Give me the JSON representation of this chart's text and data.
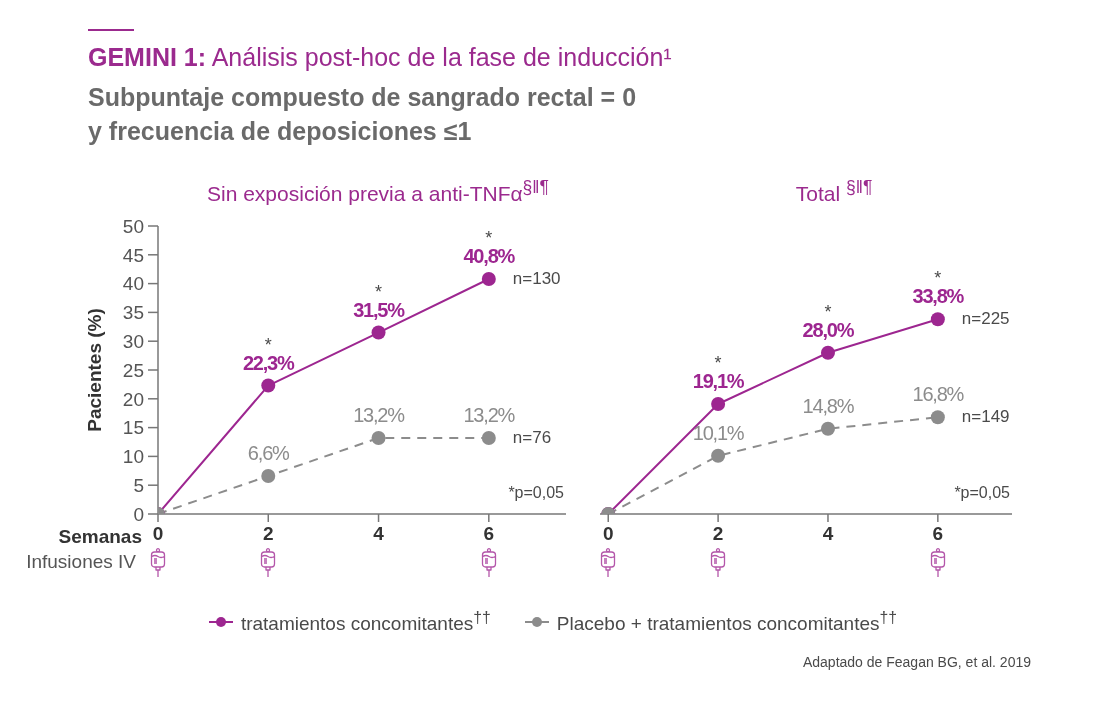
{
  "chart_data": [
    {
      "type": "other",
      "title": "GEMINI 1: Análisis post-hoc de la fase de inducción¹",
      "subtitle": "Subpuntaje compuesto de sangrado rectal = 0\ny frecuencia de deposiciones ≤1",
      "annotations": [
        "Adaptado de Feagan BG, et al. 2019"
      ]
    },
    {
      "type": "line",
      "title": "Sin exposición previa a anti-TNFα$^{§‖¶}$",
      "xlabel": "Semanas",
      "ylabel": "Pacientes (%)",
      "x": [
        0,
        2,
        4,
        6
      ],
      "series": [
        {
          "name": "tratamientos concomitantes$^{††}$",
          "color": "#9d2690",
          "values": [
            0,
            22.3,
            31.5,
            40.8
          ],
          "value_labels": [
            null,
            "22,3%",
            "31,5%",
            "40,8%"
          ],
          "line_style": "solid"
        },
        {
          "name": "Placebo + tratamientos concomitantes$^{††}$",
          "color": "#8c8c8c",
          "values": [
            0,
            6.6,
            13.2,
            13.2
          ],
          "value_labels": [
            null,
            "6,6%",
            "13,2%",
            "13,2%"
          ],
          "line_style": "dashed"
        }
      ],
      "xlim": [
        0,
        7.4
      ],
      "xticks": [
        0,
        2,
        4,
        6
      ],
      "ylim": [
        0,
        50
      ],
      "yticks": [
        0,
        5,
        10,
        15,
        20,
        25,
        30,
        35,
        40,
        45,
        50
      ],
      "marker": "circle",
      "legend": "bottom",
      "annotations": [
        {
          "text": "*",
          "x": 2,
          "y": 22.3
        },
        {
          "text": "*",
          "x": 4,
          "y": 31.5
        },
        {
          "text": "*",
          "x": 6,
          "y": 40.8
        },
        {
          "text": "n=130",
          "x": 6,
          "y": 40.8
        },
        {
          "text": "n=76",
          "x": 6,
          "y": 13.2
        },
        "*p=0,05",
        "Infusiones IV"
      ]
    },
    {
      "type": "line",
      "title": "Total $^{§‖¶}$",
      "x": [
        0,
        2,
        4,
        6
      ],
      "series": [
        {
          "color": "#9d2690",
          "values": [
            0,
            19.1,
            28.0,
            33.8
          ],
          "value_labels": [
            null,
            "19,1%",
            "28,0%",
            "33,8%"
          ],
          "line_style": "solid"
        },
        {
          "color": "#8c8c8c",
          "values": [
            0,
            10.1,
            14.8,
            16.8
          ],
          "value_labels": [
            null,
            "10,1%",
            "14,8%",
            "16,8%"
          ],
          "line_style": "dashed"
        }
      ],
      "xlim": [
        -0.15,
        7.35
      ],
      "xticks": [
        0,
        2,
        4,
        6
      ],
      "ylim": [
        0,
        50
      ],
      "yticks": [
        0,
        5,
        10,
        15,
        20,
        25,
        30,
        35,
        40,
        45,
        50
      ],
      "tick_labels": "x",
      "marker": "circle",
      "annotations": [
        {
          "text": "*",
          "x": 2,
          "y": 19.1
        },
        {
          "text": "*",
          "x": 4,
          "y": 28.0
        },
        {
          "text": "*",
          "x": 6,
          "y": 33.8
        },
        {
          "text": "n=225",
          "x": 6,
          "y": 33.8
        },
        {
          "text": "n=149",
          "x": 6,
          "y": 16.8
        },
        "*p=0,05"
      ]
    }
  ]
}
